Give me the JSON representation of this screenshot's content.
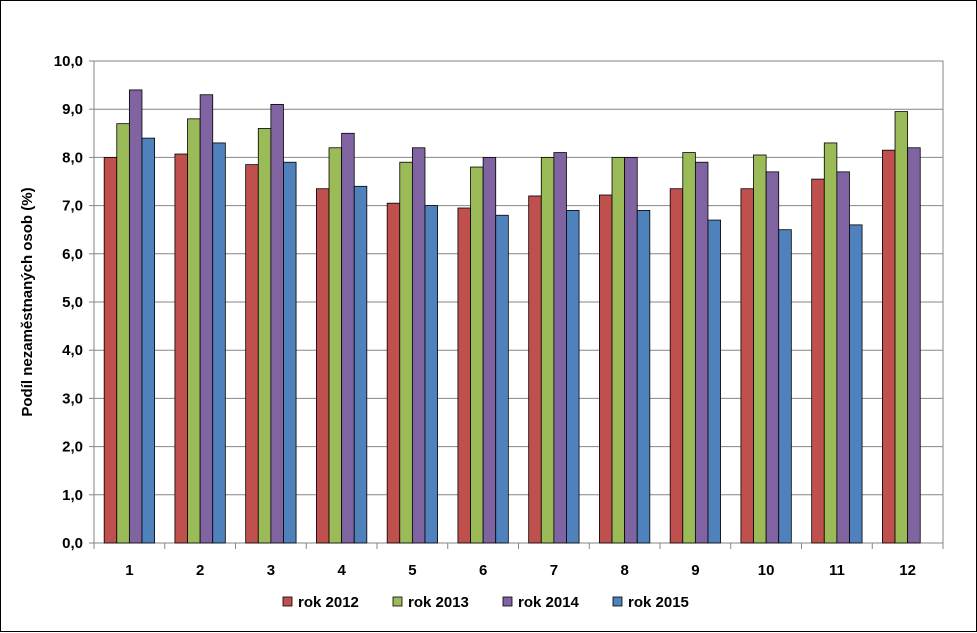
{
  "chart_data": {
    "type": "bar",
    "categories": [
      "1",
      "2",
      "3",
      "4",
      "5",
      "6",
      "7",
      "8",
      "9",
      "10",
      "11",
      "12"
    ],
    "series": [
      {
        "name": "rok 2012",
        "color": "#c0504d",
        "values": [
          8.0,
          8.07,
          7.85,
          7.35,
          7.05,
          6.95,
          7.2,
          7.22,
          7.35,
          7.35,
          7.55,
          8.15
        ]
      },
      {
        "name": "rok 2013",
        "color": "#9bbb59",
        "values": [
          8.7,
          8.8,
          8.6,
          8.2,
          7.9,
          7.8,
          8.0,
          8.0,
          8.1,
          8.05,
          8.3,
          8.95
        ]
      },
      {
        "name": "rok 2014",
        "color": "#8064a2",
        "values": [
          9.4,
          9.3,
          9.1,
          8.5,
          8.2,
          8.0,
          8.1,
          8.0,
          7.9,
          7.7,
          7.7,
          8.2
        ]
      },
      {
        "name": "rok 2015",
        "color": "#4f81bd",
        "values": [
          8.4,
          8.3,
          7.9,
          7.4,
          7.0,
          6.8,
          6.9,
          6.9,
          6.7,
          6.5,
          6.6,
          null
        ]
      }
    ],
    "yticks": [
      "0,0",
      "1,0",
      "2,0",
      "3,0",
      "4,0",
      "5,0",
      "6,0",
      "7,0",
      "8,0",
      "9,0",
      "10,0"
    ],
    "ylim": [
      0,
      10
    ],
    "ylabel": "Podíl nezaměstnaných osob (%)",
    "xlabel": "",
    "title": "",
    "grid": true,
    "legend_position": "bottom"
  }
}
